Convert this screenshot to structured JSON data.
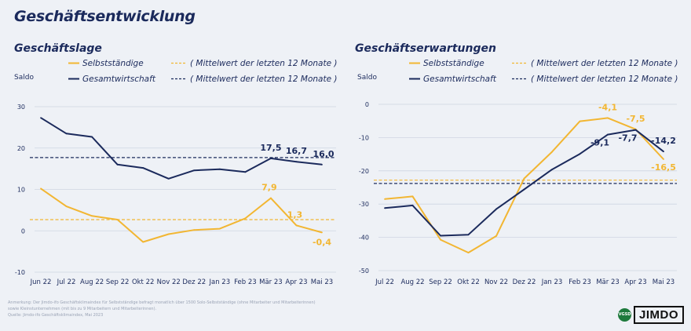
{
  "page": {
    "title": "Geschäftsentwicklung",
    "footnote_lines": [
      "Anmerkung: Der Jimdo-ifo Geschäftsklimaindex für Selbstständige befragt monatlich über 1500 Solo-Selbstständige (ohne Mitarbeiter und Mitarbeiterinnen)",
      "sowie Kleinstunternehmen (mit bis zu 9 Mitarbeitern und Mitarbeiterinnen).",
      "Quelle: Jimdo-ifo Geschäftsklimaindex, Mai 2023"
    ],
    "logo_badge": "VGSD",
    "logo_text": "JIMDO"
  },
  "colors": {
    "self_employed": "#f2b632",
    "economy": "#1b2a5c",
    "grid": "#cfd6e2",
    "text": "#1b2a5c"
  },
  "chart_data": [
    {
      "type": "line",
      "title": "Geschäftslage",
      "ylabel": "Saldo",
      "categories": [
        "Jun 22",
        "Jul 22",
        "Aug 22",
        "Sep 22",
        "Okt 22",
        "Nov 22",
        "Dez 22",
        "Jan 23",
        "Feb 23",
        "Mär 23",
        "Apr 23",
        "Mai 23"
      ],
      "ylim": [
        -10,
        30
      ],
      "yticks": [
        "30",
        "20",
        "10",
        "0",
        "-10"
      ],
      "series": [
        {
          "name": "Selbstständige",
          "color": "#f2b632",
          "values": [
            10.2,
            5.9,
            3.6,
            2.7,
            -2.7,
            -0.8,
            0.2,
            0.5,
            3.0,
            7.9,
            1.3,
            -0.4
          ]
        },
        {
          "name": "Gesamtwirtschaft",
          "color": "#1b2a5c",
          "values": [
            27.3,
            23.5,
            22.7,
            16.0,
            15.2,
            12.6,
            14.6,
            14.9,
            14.2,
            17.5,
            16.7,
            16.0
          ]
        }
      ],
      "mean_lines": [
        {
          "series": "Selbstständige",
          "value": 2.7
        },
        {
          "series": "Gesamtwirtschaft",
          "value": 17.7
        }
      ],
      "legend": [
        {
          "name": "Selbstständige",
          "mean_label": "( Mittelwert der letzten 12 Monate )"
        },
        {
          "name": "Gesamtwirtschaft",
          "mean_label": "( Mittelwert der letzten 12 Monate )"
        }
      ],
      "data_labels": [
        {
          "series": 1,
          "index": 9,
          "text": "17,5"
        },
        {
          "series": 1,
          "index": 10,
          "text": "16,7"
        },
        {
          "series": 1,
          "index": 11,
          "text": "16,0"
        },
        {
          "series": 0,
          "index": 9,
          "text": "7,9"
        },
        {
          "series": 0,
          "index": 10,
          "text": "1,3"
        },
        {
          "series": 0,
          "index": 11,
          "text": "-0,4"
        }
      ],
      "grid": "horizontal",
      "legend_position": "top-left"
    },
    {
      "type": "line",
      "title": "Geschäftserwartungen",
      "ylabel": "Saldo",
      "categories": [
        "Jul 22",
        "Aug 22",
        "Sep 22",
        "Okt 22",
        "Nov 22",
        "Dez 22",
        "Jan 23",
        "Feb 23",
        "Mär 23",
        "Apr 23",
        "Mai 23"
      ],
      "ylim": [
        -50,
        0
      ],
      "yticks": [
        "0",
        "-10",
        "-20",
        "-30",
        "-40",
        "-50"
      ],
      "series": [
        {
          "name": "Selbstständige",
          "color": "#f2b632",
          "values": [
            -28.5,
            -27.7,
            -40.7,
            -44.6,
            -39.6,
            -22.3,
            -14.3,
            -5.1,
            -4.1,
            -7.5,
            -16.5
          ]
        },
        {
          "name": "Gesamtwirtschaft",
          "color": "#1b2a5c",
          "values": [
            -31.2,
            -30.4,
            -39.5,
            -39.2,
            -31.5,
            -25.6,
            -19.6,
            -14.9,
            -9.1,
            -7.7,
            -14.2
          ]
        }
      ],
      "mean_lines": [
        {
          "series": "Selbstständige",
          "value": -22.8
        },
        {
          "series": "Gesamtwirtschaft",
          "value": -23.8
        }
      ],
      "legend": [
        {
          "name": "Selbstständige",
          "mean_label": "( Mittelwert der letzten 12 Monate )"
        },
        {
          "name": "Gesamtwirtschaft",
          "mean_label": "( Mittelwert der letzten 12 Monate )"
        }
      ],
      "data_labels": [
        {
          "series": 0,
          "index": 8,
          "text": "-4,1"
        },
        {
          "series": 0,
          "index": 9,
          "text": "-7,5"
        },
        {
          "series": 1,
          "index": 10,
          "text": "-14,2"
        },
        {
          "series": 1,
          "index": 8,
          "text": "-9,1"
        },
        {
          "series": 1,
          "index": 9,
          "text": "-7,7"
        },
        {
          "series": 0,
          "index": 10,
          "text": "-16,5"
        }
      ],
      "grid": "horizontal",
      "legend_position": "top-left"
    }
  ]
}
